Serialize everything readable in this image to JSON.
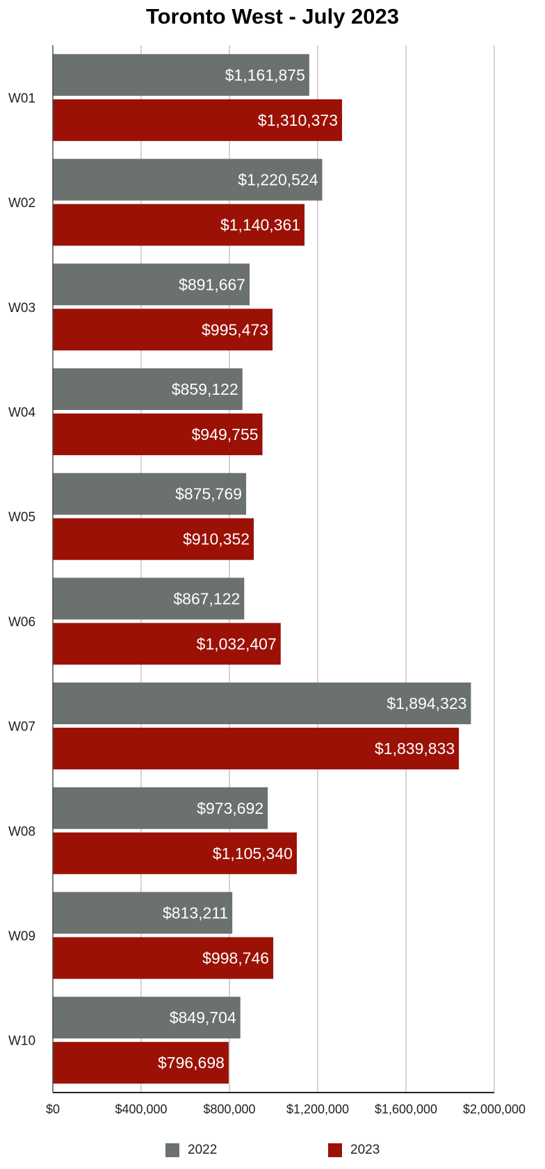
{
  "chart_data": {
    "type": "bar",
    "orientation": "horizontal",
    "title": "Toronto West - July 2023",
    "xlabel": "",
    "ylabel": "",
    "categories": [
      "W01",
      "W02",
      "W03",
      "W04",
      "W05",
      "W06",
      "W07",
      "W08",
      "W09",
      "W10"
    ],
    "series": [
      {
        "name": "2022",
        "color": "#6b716d",
        "values": [
          1161875,
          1220524,
          891667,
          859122,
          875769,
          867122,
          1894323,
          973692,
          813211,
          849704
        ],
        "labels": [
          "$1,161,875",
          "$1,220,524",
          "$891,667",
          "$859,122",
          "$875,769",
          "$867,122",
          "$1,894,323",
          "$973,692",
          "$813,211",
          "$849,704"
        ]
      },
      {
        "name": "2023",
        "color": "#9b1106",
        "values": [
          1310373,
          1140361,
          995473,
          949755,
          910352,
          1032407,
          1839833,
          1105340,
          998746,
          796698
        ],
        "labels": [
          "$1,310,373",
          "$1,140,361",
          "$995,473",
          "$949,755",
          "$910,352",
          "$1,032,407",
          "$1,839,833",
          "$1,105,340",
          "$998,746",
          "$796,698"
        ]
      }
    ],
    "xlim": [
      0,
      2000000
    ],
    "xticks": [
      0,
      400000,
      800000,
      1200000,
      1600000,
      2000000
    ],
    "xtick_labels": [
      "$0",
      "$400,000",
      "$800,000",
      "$1,200,000",
      "$1,600,000",
      "$2,000,000"
    ],
    "grid": true,
    "legend_position": "bottom"
  }
}
